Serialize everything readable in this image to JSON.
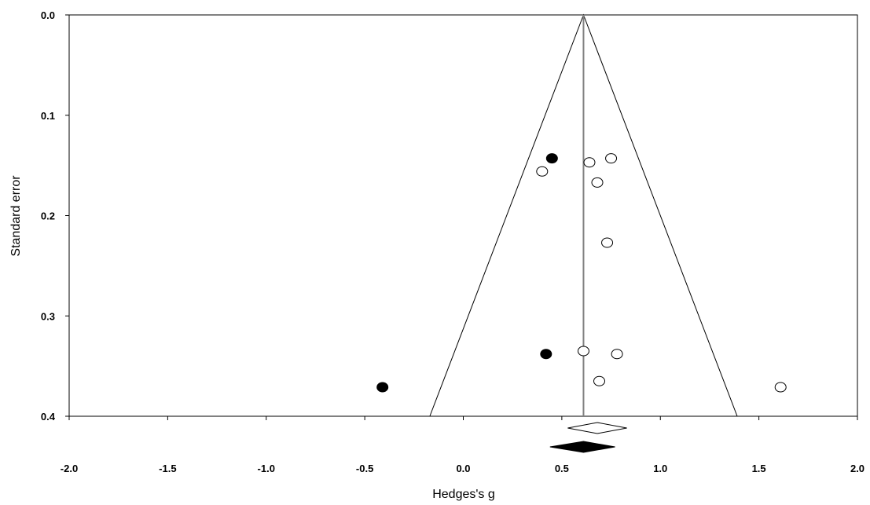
{
  "chart_data": {
    "type": "scatter",
    "subtype": "funnel-plot",
    "title": "",
    "xlabel": "Hedges's g",
    "ylabel": "Standard error",
    "xlim": [
      -2.0,
      2.0
    ],
    "ylim": [
      0.4,
      0.0
    ],
    "y_axis_inverted": true,
    "x_ticks": [
      "-2.0",
      "-1.5",
      "-1.0",
      "-0.5",
      "0.0",
      "0.5",
      "1.0",
      "1.5",
      "2.0"
    ],
    "x_tick_values": [
      -2.0,
      -1.5,
      -1.0,
      -0.5,
      0.0,
      0.5,
      1.0,
      1.5,
      2.0
    ],
    "y_ticks": [
      "0.0",
      "0.1",
      "0.2",
      "0.3",
      "0.4"
    ],
    "y_tick_values": [
      0.0,
      0.1,
      0.2,
      0.3,
      0.4
    ],
    "grid": false,
    "pooled_estimate": 0.61,
    "funnel": {
      "apex": [
        0.61,
        0.0
      ],
      "base_left": [
        -0.17,
        0.4
      ],
      "base_right": [
        1.39,
        0.4
      ]
    },
    "series": [
      {
        "marker": "open-circle",
        "points": [
          {
            "x": 0.64,
            "y": 0.147
          },
          {
            "x": 0.75,
            "y": 0.143
          },
          {
            "x": 0.4,
            "y": 0.156
          },
          {
            "x": 0.68,
            "y": 0.167
          },
          {
            "x": 0.73,
            "y": 0.227
          },
          {
            "x": 0.61,
            "y": 0.335
          },
          {
            "x": 0.78,
            "y": 0.338
          },
          {
            "x": 0.69,
            "y": 0.365
          },
          {
            "x": 1.61,
            "y": 0.371
          }
        ]
      },
      {
        "marker": "filled-circle",
        "points": [
          {
            "x": 0.45,
            "y": 0.143
          },
          {
            "x": 0.42,
            "y": 0.338
          },
          {
            "x": -0.41,
            "y": 0.371
          }
        ]
      }
    ],
    "summary_diamonds": [
      {
        "style": "open",
        "center": 0.68,
        "low": 0.53,
        "high": 0.83
      },
      {
        "style": "filled",
        "center": 0.61,
        "low": 0.44,
        "high": 0.77
      }
    ],
    "colors": {
      "axis": "#000000",
      "center_line": "#808080",
      "funnel": "#000000",
      "marker_fill_open": "#ffffff",
      "marker_fill_solid": "#000000"
    }
  }
}
